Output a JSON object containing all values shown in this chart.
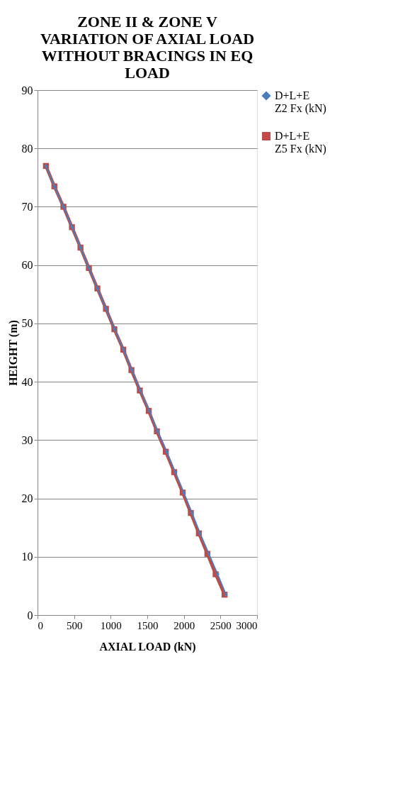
{
  "chart_data": {
    "type": "line",
    "title": "ZONE II & ZONE V VARIATION OF AXIAL LOAD WITHOUT BRACINGS IN EQ LOAD",
    "xlabel": "AXIAL LOAD (kN)",
    "ylabel": "HEIGHT (m)",
    "series": [
      {
        "name": "D+L+E Z2 Fx (kN)",
        "color": "#4a7ebb",
        "marker": "diamond",
        "x": [
          115,
          230,
          354,
          470,
          587,
          702,
          818,
          935,
          1055,
          1175,
          1288,
          1405,
          1525,
          1640,
          1763,
          1880,
          1995,
          2110,
          2220,
          2340,
          2460,
          2575
        ],
        "values": [
          77,
          73.5,
          70,
          66.5,
          63,
          59.5,
          56,
          52.5,
          49,
          45.5,
          42,
          38.5,
          35,
          31.5,
          28,
          24.5,
          21,
          17.5,
          14,
          10.5,
          7,
          3.5
        ]
      },
      {
        "name": "D+L+E Z5 Fx (kN)",
        "color": "#be4b48",
        "marker": "square",
        "x": [
          115,
          230,
          354,
          470,
          587,
          702,
          818,
          935,
          1050,
          1172,
          1283,
          1398,
          1520,
          1631,
          1753,
          1868,
          1984,
          2095,
          2205,
          2321,
          2434,
          2556
        ],
        "values": [
          77,
          73.5,
          70,
          66.5,
          63,
          59.5,
          56,
          52.5,
          49,
          45.5,
          42,
          38.5,
          35,
          31.5,
          28,
          24.5,
          21,
          17.5,
          14,
          10.5,
          7,
          3.5
        ]
      }
    ],
    "xlim": [
      0,
      3000
    ],
    "xticks": [
      0,
      500,
      1000,
      1500,
      2000,
      2500,
      3000
    ],
    "ylim": [
      0,
      90
    ],
    "yticks": [
      0,
      10,
      20,
      30,
      40,
      50,
      60,
      70,
      80,
      90
    ],
    "grid": "y",
    "legend": "right"
  }
}
